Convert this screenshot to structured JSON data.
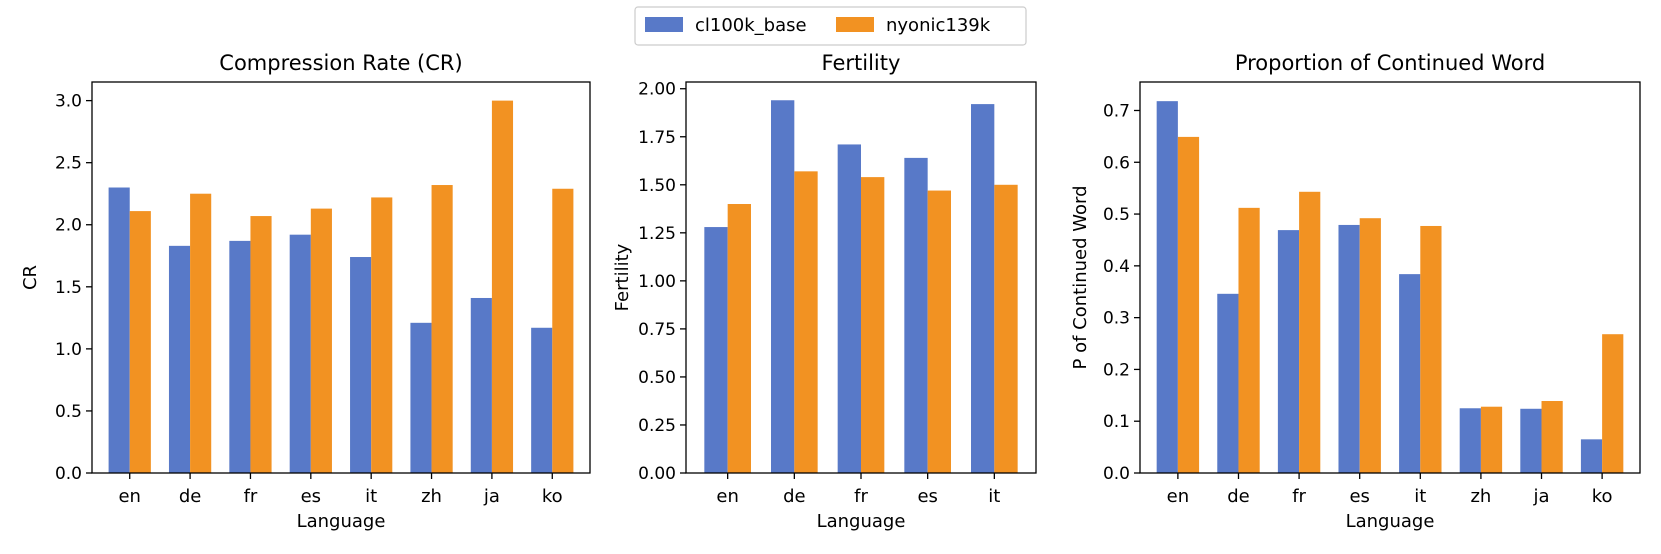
{
  "legend": {
    "placement": "top-center",
    "entries": [
      {
        "name": "cl100k_base",
        "color": "#5879c8"
      },
      {
        "name": "nyonic139k",
        "color": "#f29222"
      }
    ]
  },
  "chart_data": [
    {
      "type": "bar",
      "title": "Compression Rate (CR)",
      "xlabel": "Language",
      "ylabel": "CR",
      "categories": [
        "en",
        "de",
        "fr",
        "es",
        "it",
        "zh",
        "ja",
        "ko"
      ],
      "ylim": [
        0,
        3.15
      ],
      "yticks": [
        0.0,
        0.5,
        1.0,
        1.5,
        2.0,
        2.5,
        3.0
      ],
      "ytick_labels": [
        "0.0",
        "0.5",
        "1.0",
        "1.5",
        "2.0",
        "2.5",
        "3.0"
      ],
      "grid": false,
      "series": [
        {
          "name": "cl100k_base",
          "color": "#5879c8",
          "values": [
            2.3,
            1.83,
            1.87,
            1.92,
            1.74,
            1.21,
            1.41,
            1.17
          ]
        },
        {
          "name": "nyonic139k",
          "color": "#f29222",
          "values": [
            2.11,
            2.25,
            2.07,
            2.13,
            2.22,
            2.32,
            3.0,
            2.29
          ]
        }
      ]
    },
    {
      "type": "bar",
      "title": "Fertility",
      "xlabel": "Language",
      "ylabel": "Fertility",
      "categories": [
        "en",
        "de",
        "fr",
        "es",
        "it"
      ],
      "ylim": [
        0,
        2.035
      ],
      "yticks": [
        0.0,
        0.25,
        0.5,
        0.75,
        1.0,
        1.25,
        1.5,
        1.75,
        2.0
      ],
      "ytick_labels": [
        "0.00",
        "0.25",
        "0.50",
        "0.75",
        "1.00",
        "1.25",
        "1.50",
        "1.75",
        "2.00"
      ],
      "grid": false,
      "series": [
        {
          "name": "cl100k_base",
          "color": "#5879c8",
          "values": [
            1.28,
            1.94,
            1.71,
            1.64,
            1.92
          ]
        },
        {
          "name": "nyonic139k",
          "color": "#f29222",
          "values": [
            1.4,
            1.57,
            1.54,
            1.47,
            1.5
          ]
        }
      ]
    },
    {
      "type": "bar",
      "title": "Proportion of Continued Word",
      "xlabel": "Language",
      "ylabel": "P of Continued Word",
      "categories": [
        "en",
        "de",
        "fr",
        "es",
        "it",
        "zh",
        "ja",
        "ko"
      ],
      "ylim": [
        0,
        0.755
      ],
      "yticks": [
        0.0,
        0.1,
        0.2,
        0.3,
        0.4,
        0.5,
        0.6,
        0.7
      ],
      "ytick_labels": [
        "0.0",
        "0.1",
        "0.2",
        "0.3",
        "0.4",
        "0.5",
        "0.6",
        "0.7"
      ],
      "grid": false,
      "series": [
        {
          "name": "cl100k_base",
          "color": "#5879c8",
          "values": [
            0.718,
            0.346,
            0.469,
            0.479,
            0.384,
            0.125,
            0.124,
            0.065
          ]
        },
        {
          "name": "nyonic139k",
          "color": "#f29222",
          "values": [
            0.649,
            0.512,
            0.543,
            0.492,
            0.477,
            0.128,
            0.139,
            0.268
          ]
        }
      ]
    }
  ]
}
